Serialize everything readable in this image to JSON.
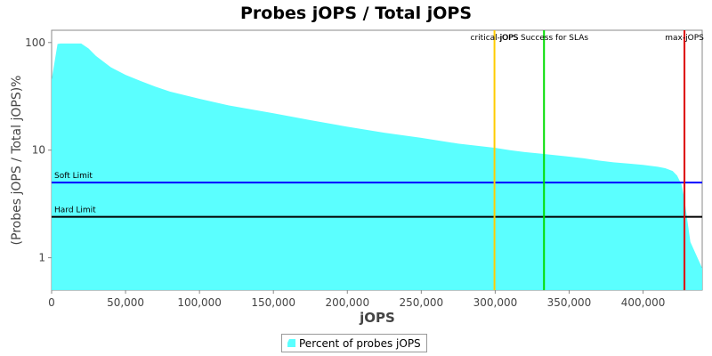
{
  "chart_data": {
    "type": "area",
    "title": "Probes jOPS / Total jOPS",
    "xlabel": "jOPS",
    "ylabel": "(Probes jOPS / Total jOPS)%",
    "yscale": "log",
    "xlim": [
      0,
      440000
    ],
    "ylim": [
      0.5,
      130
    ],
    "x_ticks": [
      0,
      50000,
      100000,
      150000,
      200000,
      250000,
      300000,
      350000,
      400000
    ],
    "x_tick_labels": [
      "0",
      "50,000",
      "100,000",
      "150,000",
      "200,000",
      "250,000",
      "300,000",
      "350,000",
      "400,000"
    ],
    "y_ticks": [
      1,
      10,
      100
    ],
    "y_tick_labels": [
      "1",
      "10",
      "100"
    ],
    "grid": false,
    "legend_position": "bottom",
    "series": [
      {
        "name": "Percent of probes jOPS",
        "color": "#5bffff",
        "x": [
          0,
          1500,
          4000,
          6000,
          10000,
          15000,
          20000,
          25000,
          30000,
          40000,
          50000,
          60000,
          70000,
          80000,
          100000,
          120000,
          150000,
          175000,
          200000,
          225000,
          250000,
          275000,
          300000,
          310000,
          320000,
          330000,
          340000,
          350000,
          360000,
          365000,
          370000,
          380000,
          390000,
          400000,
          410000,
          415000,
          420000,
          423000,
          426000,
          428000,
          430000,
          432000,
          440000
        ],
        "y": [
          45,
          60,
          97,
          98,
          98,
          98,
          98,
          88,
          75,
          59,
          50,
          44,
          39,
          35,
          30,
          26,
          22,
          19,
          16.5,
          14.5,
          13,
          11.5,
          10.5,
          10,
          9.6,
          9.3,
          9,
          8.7,
          8.4,
          8.2,
          8,
          7.7,
          7.5,
          7.3,
          7,
          6.8,
          6.4,
          5.8,
          4.8,
          3.5,
          2.2,
          1.4,
          0.8
        ]
      }
    ],
    "horizontal_lines": [
      {
        "label": "Soft Limit",
        "y": 5,
        "color": "#0000ff"
      },
      {
        "label": "Hard Limit",
        "y": 2.4,
        "color": "#000000"
      }
    ],
    "vertical_lines": [
      {
        "label": "critical-jOPS",
        "x": 299500,
        "color": "#ffcc00"
      },
      {
        "label": "jOPS Success for SLAs",
        "x": 333000,
        "color": "#00dd00"
      },
      {
        "label": "max-jOPS",
        "x": 428000,
        "color": "#dd0000"
      }
    ]
  }
}
